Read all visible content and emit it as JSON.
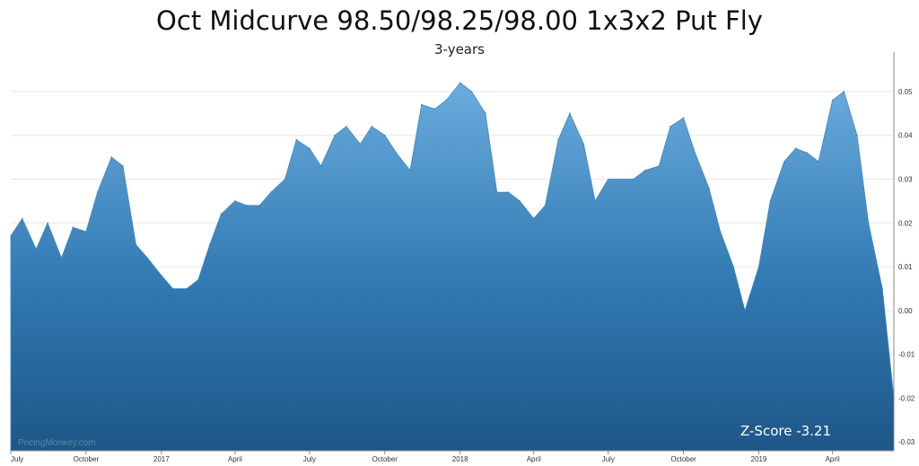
{
  "chart_data": {
    "type": "area",
    "title": "Oct Midcurve 98.50/98.25/98.00 1x3x2 Put Fly",
    "subtitle": "3-years",
    "annotation": "Z-Score -3.21",
    "watermark": "PricingMonkey.com",
    "xlabel": "",
    "ylabel": "",
    "ylim": [
      -0.032,
      0.059
    ],
    "yticks": [
      "0.05",
      "0.04",
      "0.03",
      "0.02",
      "0.01",
      "0.00",
      "-0.01",
      "-0.02",
      "-0.03"
    ],
    "xticks": [
      "July",
      "October",
      "2017",
      "April",
      "July",
      "October",
      "2018",
      "April",
      "July",
      "October",
      "2019",
      "April"
    ],
    "x": [
      "2016-07-01",
      "2016-07-15",
      "2016-08-01",
      "2016-08-15",
      "2016-09-01",
      "2016-09-15",
      "2016-10-01",
      "2016-10-15",
      "2016-11-01",
      "2016-11-15",
      "2016-12-01",
      "2016-12-15",
      "2017-01-01",
      "2017-01-15",
      "2017-02-01",
      "2017-02-15",
      "2017-03-01",
      "2017-03-15",
      "2017-04-01",
      "2017-04-15",
      "2017-05-01",
      "2017-05-15",
      "2017-06-01",
      "2017-06-15",
      "2017-07-01",
      "2017-07-15",
      "2017-08-01",
      "2017-08-15",
      "2017-09-01",
      "2017-09-15",
      "2017-10-01",
      "2017-10-15",
      "2017-11-01",
      "2017-11-15",
      "2017-12-01",
      "2017-12-15",
      "2018-01-01",
      "2018-01-15",
      "2018-02-01",
      "2018-02-15",
      "2018-03-01",
      "2018-03-15",
      "2018-04-01",
      "2018-04-15",
      "2018-05-01",
      "2018-05-15",
      "2018-06-01",
      "2018-06-15",
      "2018-07-01",
      "2018-07-15",
      "2018-08-01",
      "2018-08-15",
      "2018-09-01",
      "2018-09-15",
      "2018-10-01",
      "2018-10-15",
      "2018-11-01",
      "2018-11-15",
      "2018-12-01",
      "2018-12-15",
      "2019-01-01",
      "2019-01-15",
      "2019-02-01",
      "2019-02-15",
      "2019-03-01",
      "2019-03-15",
      "2019-04-01",
      "2019-04-15",
      "2019-05-01",
      "2019-05-15",
      "2019-06-01",
      "2019-06-15"
    ],
    "y": [
      0.017,
      0.021,
      0.014,
      0.02,
      0.012,
      0.019,
      0.018,
      0.027,
      0.035,
      0.033,
      0.015,
      0.012,
      0.008,
      0.005,
      0.005,
      0.007,
      0.015,
      0.022,
      0.025,
      0.024,
      0.024,
      0.027,
      0.03,
      0.039,
      0.037,
      0.033,
      0.04,
      0.042,
      0.038,
      0.042,
      0.04,
      0.036,
      0.032,
      0.047,
      0.046,
      0.048,
      0.052,
      0.05,
      0.045,
      0.027,
      0.027,
      0.025,
      0.021,
      0.024,
      0.039,
      0.045,
      0.038,
      0.025,
      0.03,
      0.03,
      0.03,
      0.032,
      0.033,
      0.042,
      0.044,
      0.036,
      0.028,
      0.018,
      0.01,
      0.0,
      0.01,
      0.025,
      0.034,
      0.037,
      0.036,
      0.034,
      0.048,
      0.05,
      0.04,
      0.02,
      0.005,
      -0.02
    ]
  }
}
